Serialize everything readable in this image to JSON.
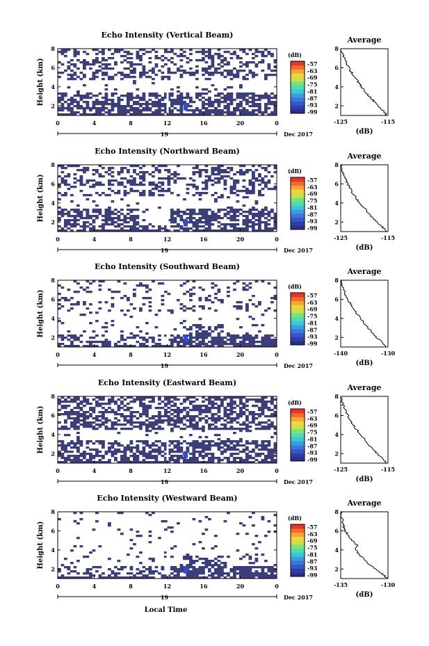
{
  "figure": {
    "date_label": "Dec 2017",
    "date_day": "19",
    "xlabel": "Local Time",
    "average_title": "Average",
    "unit_label": "(dB)",
    "colorbar_ticks": [
      "-57",
      "-63",
      "-69",
      "-75",
      "-81",
      "-87",
      "-93",
      "-99"
    ],
    "colorbar_colors": [
      "#2b2f8c",
      "#2f3fa8",
      "#3a56c6",
      "#3d78d8",
      "#3c9ee0",
      "#3ec6d6",
      "#4fdcb0",
      "#7fe07a",
      "#c6e24a",
      "#f4d23c",
      "#f7a633",
      "#f36a2c",
      "#e8352a"
    ],
    "grid_fill_color": "#3b3e78",
    "highlight_color": "#2f4fd0"
  },
  "chart_data": [
    {
      "type": "heatmap",
      "title": "Echo Intensity (Vertical Beam)",
      "ylabel": "Height (km)",
      "x_ticks": [
        "0",
        "4",
        "8",
        "12",
        "16",
        "20",
        "0"
      ],
      "y_ticks": [
        "2",
        "4",
        "6",
        "8"
      ],
      "xlim": [
        0,
        24
      ],
      "ylim": [
        1,
        8
      ],
      "colorbar_range_dB": [
        -99,
        -57
      ],
      "description_levels": "Low-level echo layer from ~1 to ~3.5 km throughout the day; upper patchy echoes 5-8 km; stronger cell near 14 LT below 2 km",
      "average_profile": {
        "xlabel": "(dB)",
        "x_ticks": [
          "-125",
          "-115"
        ],
        "xlim": [
          -125,
          -115
        ],
        "y_ticks": [
          "2",
          "4",
          "6",
          "8"
        ],
        "ylim": [
          1,
          8
        ],
        "x": [
          -115.2,
          -116.0,
          -117.2,
          -118.0,
          -118.9,
          -119.8,
          -120.6,
          -121.3,
          -122.0,
          -122.7,
          -123.3,
          -123.8,
          -124.3,
          -124.7,
          -125.0
        ],
        "y": [
          1.0,
          1.5,
          2.0,
          2.5,
          3.0,
          3.5,
          4.0,
          4.5,
          5.0,
          5.5,
          6.0,
          6.5,
          7.0,
          7.5,
          8.0
        ]
      }
    },
    {
      "type": "heatmap",
      "title": "Echo Intensity (Northward Beam)",
      "ylabel": "Height (km)",
      "x_ticks": [
        "0",
        "4",
        "8",
        "12",
        "16",
        "20",
        "0"
      ],
      "y_ticks": [
        "2",
        "4",
        "6",
        "8"
      ],
      "xlim": [
        0,
        24
      ],
      "ylim": [
        1,
        8
      ],
      "colorbar_range_dB": [
        -99,
        -57
      ],
      "average_profile": {
        "xlabel": "(dB)",
        "x_ticks": [
          "-125",
          "-115"
        ],
        "xlim": [
          -125,
          -115
        ],
        "y_ticks": [
          "2",
          "4",
          "6",
          "8"
        ],
        "ylim": [
          1,
          8
        ],
        "x": [
          -115.3,
          -116.2,
          -117.4,
          -118.5,
          -119.2,
          -120.1,
          -121.0,
          -121.7,
          -122.4,
          -123.0,
          -123.5,
          -124.0,
          -124.4,
          -124.8,
          -125.0
        ],
        "y": [
          1.0,
          1.5,
          2.0,
          2.5,
          3.0,
          3.5,
          4.0,
          4.5,
          5.0,
          5.5,
          6.0,
          6.5,
          7.0,
          7.5,
          8.0
        ]
      }
    },
    {
      "type": "heatmap",
      "title": "Echo Intensity (Southward Beam)",
      "ylabel": "Height (km)",
      "x_ticks": [
        "0",
        "4",
        "8",
        "12",
        "16",
        "20",
        "0"
      ],
      "y_ticks": [
        "2",
        "4",
        "6",
        "8"
      ],
      "xlim": [
        0,
        24
      ],
      "ylim": [
        1,
        8
      ],
      "colorbar_range_dB": [
        -99,
        -57
      ],
      "average_profile": {
        "xlabel": "(dB)",
        "x_ticks": [
          "-140",
          "-130"
        ],
        "xlim": [
          -140,
          -130
        ],
        "y_ticks": [
          "2",
          "4",
          "6",
          "8"
        ],
        "ylim": [
          1,
          8
        ],
        "x": [
          -130.3,
          -131.2,
          -132.4,
          -133.3,
          -134.2,
          -135.0,
          -135.8,
          -136.5,
          -137.2,
          -137.9,
          -138.5,
          -139.0,
          -139.4,
          -139.8,
          -140.0
        ],
        "y": [
          1.0,
          1.5,
          2.0,
          2.5,
          3.0,
          3.5,
          4.0,
          4.5,
          5.0,
          5.5,
          6.0,
          6.5,
          7.0,
          7.5,
          8.0
        ]
      }
    },
    {
      "type": "heatmap",
      "title": "Echo Intensity (Eastward Beam)",
      "ylabel": "Height (km)",
      "x_ticks": [
        "0",
        "4",
        "8",
        "12",
        "16",
        "20",
        "0"
      ],
      "y_ticks": [
        "2",
        "4",
        "6",
        "8"
      ],
      "xlim": [
        0,
        24
      ],
      "ylim": [
        1,
        8
      ],
      "colorbar_range_dB": [
        -99,
        -57
      ],
      "average_profile": {
        "xlabel": "(dB)",
        "x_ticks": [
          "-125",
          "-115"
        ],
        "xlim": [
          -125,
          -115
        ],
        "y_ticks": [
          "2",
          "4",
          "6",
          "8"
        ],
        "ylim": [
          1,
          8
        ],
        "x": [
          -115.2,
          -116.1,
          -117.3,
          -118.3,
          -119.1,
          -120.0,
          -120.9,
          -121.6,
          -122.3,
          -122.9,
          -123.5,
          -124.0,
          -124.4,
          -124.8,
          -125.0
        ],
        "y": [
          1.0,
          1.5,
          2.0,
          2.5,
          3.0,
          3.5,
          4.0,
          4.5,
          5.0,
          5.5,
          6.0,
          6.5,
          7.0,
          7.5,
          8.0
        ]
      }
    },
    {
      "type": "heatmap",
      "title": "Echo Intensity (Westward Beam)",
      "ylabel": "Height (km)",
      "x_ticks": [
        "0",
        "4",
        "8",
        "12",
        "16",
        "20",
        "0"
      ],
      "y_ticks": [
        "2",
        "4",
        "6",
        "8"
      ],
      "xlim": [
        0,
        24
      ],
      "ylim": [
        1,
        8
      ],
      "colorbar_range_dB": [
        -99,
        -57
      ],
      "average_profile": {
        "xlabel": "(dB)",
        "x_ticks": [
          "-135",
          "-130"
        ],
        "xlim": [
          -135,
          -130
        ],
        "y_ticks": [
          "2",
          "4",
          "6",
          "8"
        ],
        "ylim": [
          1,
          8
        ],
        "x": [
          -130.1,
          -130.6,
          -131.3,
          -132.0,
          -132.5,
          -133.0,
          -133.4,
          -133.2,
          -133.8,
          -134.2,
          -134.5,
          -134.7,
          -134.8,
          -134.9,
          -135.0
        ],
        "y": [
          1.0,
          1.5,
          2.0,
          2.5,
          3.0,
          3.5,
          4.0,
          4.5,
          5.0,
          5.5,
          6.0,
          6.5,
          7.0,
          7.5,
          8.0
        ]
      }
    }
  ]
}
